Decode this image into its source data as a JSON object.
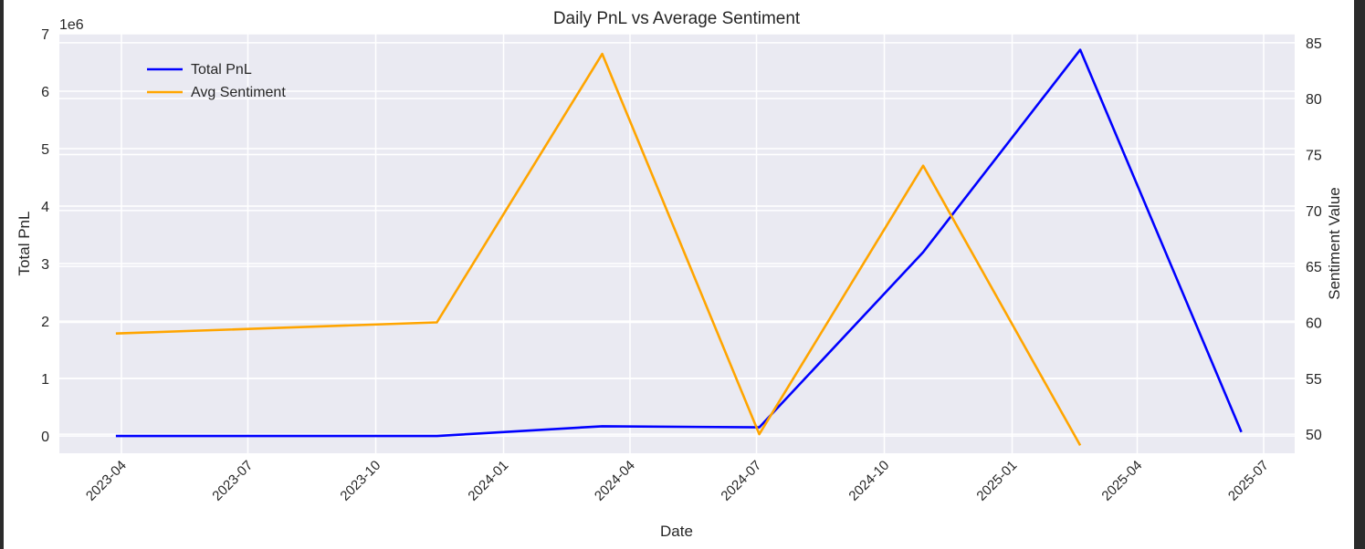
{
  "chart_data": {
    "type": "line",
    "title": "Daily PnL vs Average Sentiment",
    "xlabel": "Date",
    "ylabel_left": "Total PnL",
    "ylabel_right": "Sentiment Value",
    "left_axis_multiplier": "1e6",
    "x_tick_labels": [
      "2023-04",
      "2023-07",
      "2023-10",
      "2024-01",
      "2024-04",
      "2024-07",
      "2024-10",
      "2025-01",
      "2025-04",
      "2025-07"
    ],
    "y_left_ticks": [
      "0",
      "1",
      "2",
      "3",
      "4",
      "5",
      "6",
      "7"
    ],
    "y_right_ticks": [
      "50",
      "55",
      "60",
      "65",
      "70",
      "75",
      "80",
      "85"
    ],
    "y_left_lim": [
      -0.3,
      7.0
    ],
    "y_right_lim": [
      48.3,
      85.8
    ],
    "grid": true,
    "legend_position": "upper-left",
    "series": [
      {
        "name": "Total PnL",
        "axis": "left",
        "color": "#0000ff",
        "x": [
          "2023-03-28",
          "2023-11-14",
          "2024-03-12",
          "2024-07-03",
          "2024-10-29",
          "2025-02-19",
          "2025-06-15"
        ],
        "values": [
          0.0,
          0.0,
          0.17,
          0.15,
          3.2,
          6.72,
          0.07
        ]
      },
      {
        "name": "Avg Sentiment",
        "axis": "right",
        "color": "#ffa500",
        "x": [
          "2023-03-28",
          "2023-11-14",
          "2024-03-12",
          "2024-07-03",
          "2024-10-29",
          "2025-02-19"
        ],
        "values": [
          59,
          60,
          84,
          50,
          74,
          49
        ]
      }
    ]
  }
}
